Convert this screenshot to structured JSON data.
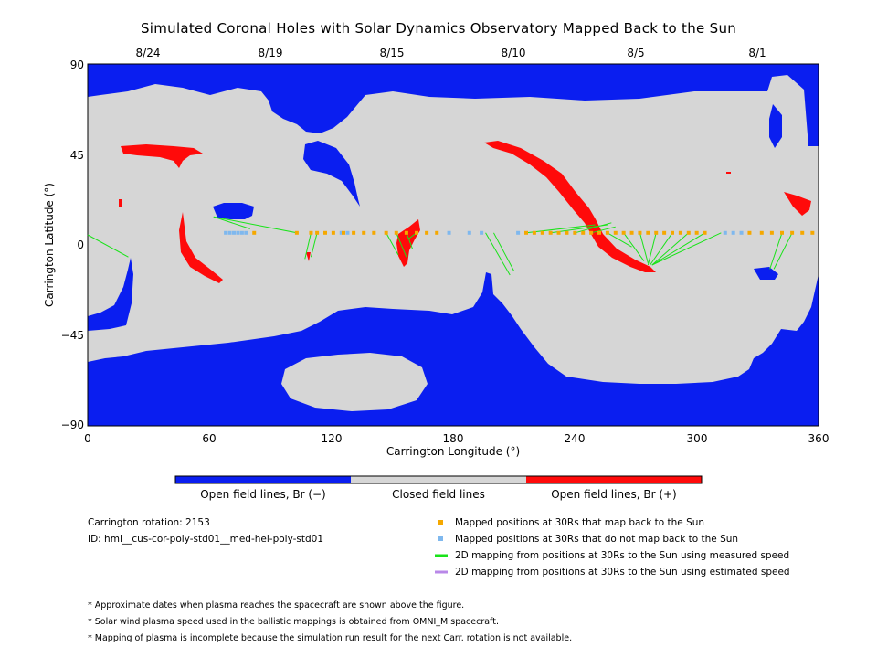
{
  "chart_data": {
    "type": "map",
    "title": "Simulated Coronal Holes with Solar Dynamics Observatory Mapped Back to the Sun",
    "xlabel": "Carrington Longitude (°)",
    "ylabel": "Carrington Latitude (°)",
    "xlim": [
      0,
      360
    ],
    "ylim": [
      -90,
      90
    ],
    "xticks": [
      "0",
      "60",
      "120",
      "180",
      "240",
      "300",
      "360"
    ],
    "yticks": [
      "90",
      "45",
      "0",
      "−45",
      "−90"
    ],
    "date_ticks": [
      "8/24",
      "8/19",
      "8/15",
      "8/10",
      "8/5",
      "8/1"
    ],
    "colorbar": [
      "Open field lines, Br (−)",
      "Closed field lines",
      "Open field lines, Br (+)"
    ],
    "colors": {
      "open_negative": "#0a1ef0",
      "closed": "#d6d6d6",
      "open_positive": "#ff0a0a",
      "mapped": "#f5a800",
      "not_mapped": "#7fb8ee",
      "measured": "#19e319",
      "estimated": "#b988e8"
    },
    "mapped_lon": [
      82,
      103,
      110,
      113,
      117,
      121,
      126,
      131,
      136,
      141,
      147,
      152,
      157,
      162,
      167,
      172,
      216,
      220,
      224,
      228,
      232,
      236,
      240,
      244,
      248,
      252,
      256,
      260,
      264,
      268,
      272,
      276,
      280,
      284,
      288,
      292,
      296,
      300,
      304,
      326,
      332,
      337,
      342,
      347,
      352,
      357
    ],
    "not_mapped_lon": [
      68,
      70,
      72,
      74,
      76,
      78,
      125,
      128,
      178,
      188,
      194,
      212,
      314,
      318,
      322
    ],
    "mapped_lat": 6,
    "measured_lines": [
      [
        [
          0,
          5
        ],
        [
          20,
          -6
        ]
      ],
      [
        [
          62,
          14
        ],
        [
          80,
          8
        ]
      ],
      [
        [
          62,
          14
        ],
        [
          103,
          6
        ]
      ],
      [
        [
          110,
          6
        ],
        [
          107,
          -7
        ]
      ],
      [
        [
          113,
          6
        ],
        [
          110,
          -6
        ]
      ],
      [
        [
          147,
          6
        ],
        [
          153,
          -5
        ]
      ],
      [
        [
          152,
          6
        ],
        [
          157,
          -6
        ]
      ],
      [
        [
          157,
          6
        ],
        [
          160,
          -2
        ]
      ],
      [
        [
          162,
          6
        ],
        [
          158,
          3
        ]
      ],
      [
        [
          196,
          6
        ],
        [
          208,
          -15
        ]
      ],
      [
        [
          200,
          6
        ],
        [
          210,
          -13
        ]
      ],
      [
        [
          216,
          6
        ],
        [
          250,
          10
        ]
      ],
      [
        [
          228,
          6
        ],
        [
          256,
          10
        ]
      ],
      [
        [
          240,
          6
        ],
        [
          258,
          11
        ]
      ],
      [
        [
          248,
          6
        ],
        [
          260,
          9
        ]
      ],
      [
        [
          256,
          6
        ],
        [
          268,
          -1
        ]
      ],
      [
        [
          264,
          6
        ],
        [
          274,
          -8
        ]
      ],
      [
        [
          272,
          6
        ],
        [
          276,
          -9
        ]
      ],
      [
        [
          280,
          6
        ],
        [
          276,
          -10
        ]
      ],
      [
        [
          288,
          6
        ],
        [
          277,
          -10
        ]
      ],
      [
        [
          296,
          6
        ],
        [
          278,
          -10
        ]
      ],
      [
        [
          304,
          6
        ],
        [
          278,
          -10
        ]
      ],
      [
        [
          312,
          6
        ],
        [
          278,
          -10
        ]
      ],
      [
        [
          342,
          6
        ],
        [
          336,
          -12
        ]
      ],
      [
        [
          347,
          6
        ],
        [
          338,
          -12
        ]
      ]
    ]
  },
  "carrington_rotation": "Carrington rotation: 2153",
  "run_id": "ID: hmi__cus-cor-poly-std01__med-hel-poly-std01",
  "legend": [
    "Mapped positions at 30Rs that map back to the Sun",
    "Mapped positions at 30Rs that do not map back to the Sun",
    "2D mapping from positions at 30Rs to the Sun using measured speed",
    "2D mapping from positions at 30Rs to the Sun using estimated speed"
  ],
  "notes": [
    "* Approximate dates when plasma reaches the spacecraft are shown above the figure.",
    "* Solar wind plasma speed used in the ballistic mappings is obtained from OMNI_M spacecraft.",
    "* Mapping of plasma is incomplete because the simulation run result for the next Carr. rotation is not available."
  ]
}
